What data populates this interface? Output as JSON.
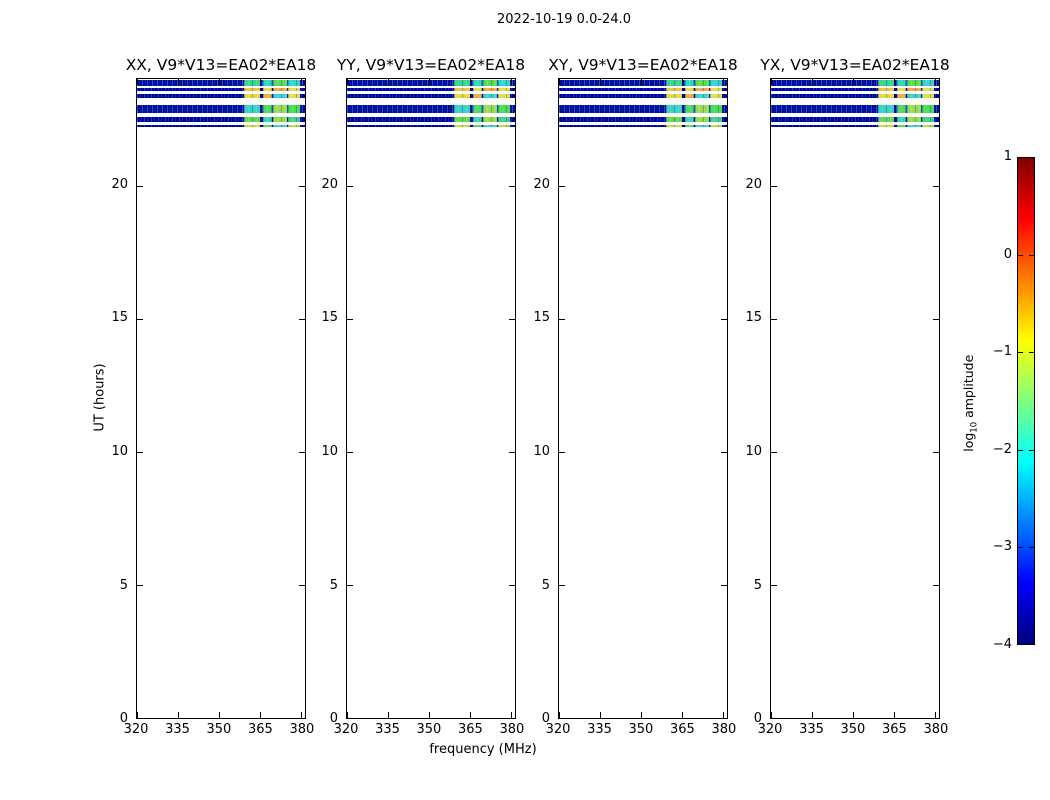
{
  "title": "2022-10-19 0.0-24.0",
  "chart_data": {
    "type": "heatmap",
    "title": "2022-10-19 0.0-24.0",
    "xlabel": "frequency (MHz)",
    "ylabel": "UT (hours)",
    "grid": false,
    "panels": [
      {
        "label": "XX, V9*V13=EA02*EA18"
      },
      {
        "label": "YY, V9*V13=EA02*EA18"
      },
      {
        "label": "XY, V9*V13=EA02*EA18"
      },
      {
        "label": "YX, V9*V13=EA02*EA18"
      }
    ],
    "xlim": [
      320,
      381.5
    ],
    "ylim": [
      0,
      24
    ],
    "x_ticks": [
      320,
      335,
      350,
      365,
      380
    ],
    "x_tick_labels": [
      "320",
      "335",
      "350",
      "365",
      "380"
    ],
    "y_ticks": [
      0,
      5,
      10,
      15,
      20
    ],
    "y_tick_labels": [
      "0",
      "5",
      "10",
      "15",
      "20"
    ],
    "noise_base_color": "#0007a2",
    "stripes": [
      {
        "ut_start": 23.74,
        "ut_end": 23.98,
        "thick": true,
        "block_colors": [
          "#38d58e",
          "#2ed9b9",
          "#59dd4d",
          "#35d6c6"
        ]
      },
      {
        "ut_start": 23.53,
        "ut_end": 23.65,
        "thick": false,
        "block_colors": [
          "#edc23c",
          "#e4db46",
          "#f0a93a",
          "#dede52"
        ]
      },
      {
        "ut_start": 23.27,
        "ut_end": 23.45,
        "thick": false,
        "block_colors": [
          "#e6d83e",
          "#f0ae3c",
          "#3bd2cb",
          "#e0dd4e"
        ]
      },
      {
        "ut_start": 22.74,
        "ut_end": 23.01,
        "thick": true,
        "block_colors": [
          "#37d2c4",
          "#4fd763",
          "#9ade4e",
          "#49dc55"
        ]
      },
      {
        "ut_start": 22.4,
        "ut_end": 22.57,
        "thick": false,
        "block_colors": [
          "#63d94f",
          "#3cd5b2",
          "#97dd49",
          "#45d189"
        ]
      },
      {
        "ut_start": 22.19,
        "ut_end": 22.29,
        "thick": false,
        "block_colors": [
          "#ccda42",
          "#5ad75f",
          "#3fd2c2",
          "#b5dc48"
        ]
      }
    ],
    "bright_blocks": [
      {
        "f0": 359.0,
        "f1": 365.1
      },
      {
        "f0": 366.2,
        "f1": 369.4
      },
      {
        "f0": 369.8,
        "f1": 374.9
      },
      {
        "f0": 375.3,
        "f1": 379.6
      }
    ],
    "colorbar": {
      "label_pre": "log",
      "label_sub": "10",
      "label_post": " amplitude",
      "cmap": "jet",
      "vmin": -4,
      "vmax": 1,
      "ticks": [
        1,
        0,
        -1,
        -2,
        -3,
        -4
      ],
      "tick_labels": [
        "1",
        "0",
        "−1",
        "−2",
        "−3",
        "−4"
      ],
      "gradient": [
        "#7f0000",
        "#ff0000",
        "#ff7f00",
        "#ffff00",
        "#7fff7f",
        "#00ffff",
        "#007fff",
        "#0000ff",
        "#00007f"
      ]
    }
  }
}
